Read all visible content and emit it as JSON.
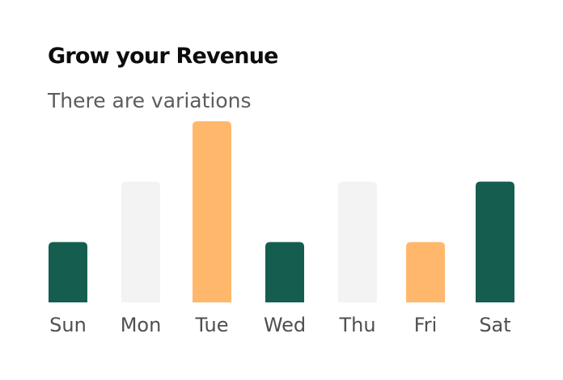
{
  "chart_data": {
    "type": "bar",
    "title": "Grow your Revenue",
    "subtitle": "There are variations",
    "categories": [
      "Sun",
      "Mon",
      "Tue",
      "Wed",
      "Thu",
      "Fri",
      "Sat"
    ],
    "values": [
      1,
      2,
      3,
      1,
      2,
      1,
      2
    ],
    "bar_colors": [
      "#155d4f",
      "#f3f3f3",
      "#ffb86b",
      "#155d4f",
      "#f3f3f3",
      "#ffb86b",
      "#155d4f"
    ],
    "ylim": [
      0,
      3
    ],
    "grid": false,
    "legend": "none"
  }
}
